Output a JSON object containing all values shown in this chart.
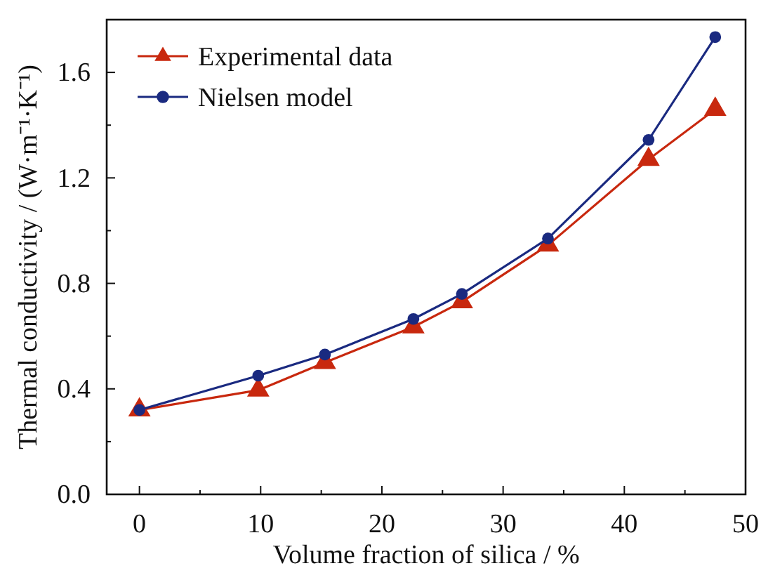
{
  "chart_data": {
    "type": "line",
    "xlabel": "Volume fraction of silica / %",
    "ylabel": "Thermal conductivity / (W·m⁻¹·K⁻¹)",
    "xlim": [
      -2.7,
      50
    ],
    "ylim": [
      0,
      1.8
    ],
    "xticks": [
      0,
      {
        "value": 5,
        "label": null
      },
      10,
      {
        "value": 15,
        "label": null
      },
      20,
      {
        "value": 25,
        "label": null
      },
      30,
      {
        "value": 35,
        "label": null
      },
      40,
      {
        "value": 45,
        "label": null
      },
      50
    ],
    "yticks": [
      {
        "value": 0,
        "label": "0.0"
      },
      {
        "value": 0.2,
        "label": null
      },
      0.4,
      {
        "value": 0.6,
        "label": null
      },
      0.8,
      {
        "value": 1,
        "label": null
      },
      1.2,
      {
        "value": 1.4,
        "label": null
      },
      1.6
    ],
    "x": [
      0,
      9.8,
      15.3,
      22.6,
      26.6,
      33.7,
      42.0,
      47.5
    ],
    "series": [
      {
        "name": "Experimental data",
        "color": "#c8280e",
        "marker": "triangle",
        "values": [
          0.32,
          0.395,
          0.5,
          0.635,
          0.73,
          0.945,
          1.27,
          1.46
        ]
      },
      {
        "name": "Nielsen model",
        "color": "#1a2a80",
        "marker": "circle",
        "values": [
          0.32,
          0.45,
          0.53,
          0.665,
          0.76,
          0.97,
          1.344,
          1.734
        ]
      }
    ],
    "legend": "top left",
    "grid": false
  }
}
